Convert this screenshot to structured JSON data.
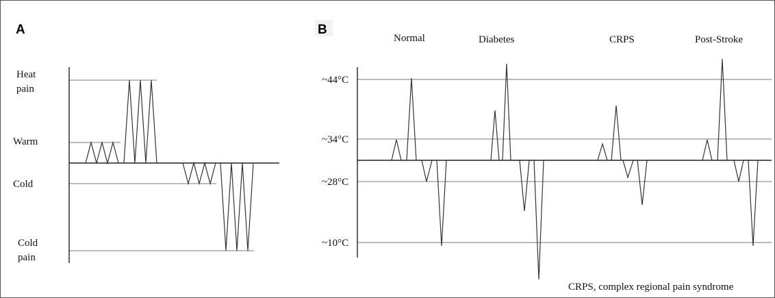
{
  "panel_a": {
    "label": "A",
    "levels": [
      {
        "line1": "Heat",
        "line2": "pain"
      },
      {
        "line1": "Warm",
        "line2": ""
      },
      {
        "line1": "Cold",
        "line2": ""
      },
      {
        "line1": "Cold",
        "line2": "pain"
      }
    ]
  },
  "panel_b": {
    "label": "B",
    "columns": [
      "Normal",
      "Diabetes",
      "CRPS",
      "Post-Stroke"
    ],
    "temperatures": [
      "~44°C",
      "~34°C",
      "~28°C",
      "~10°C"
    ],
    "footnote": "CRPS, complex regional pain syndrome"
  },
  "colors": {
    "trace": "#333333",
    "gridline": "#7a7a7a",
    "axis": "#222222"
  }
}
